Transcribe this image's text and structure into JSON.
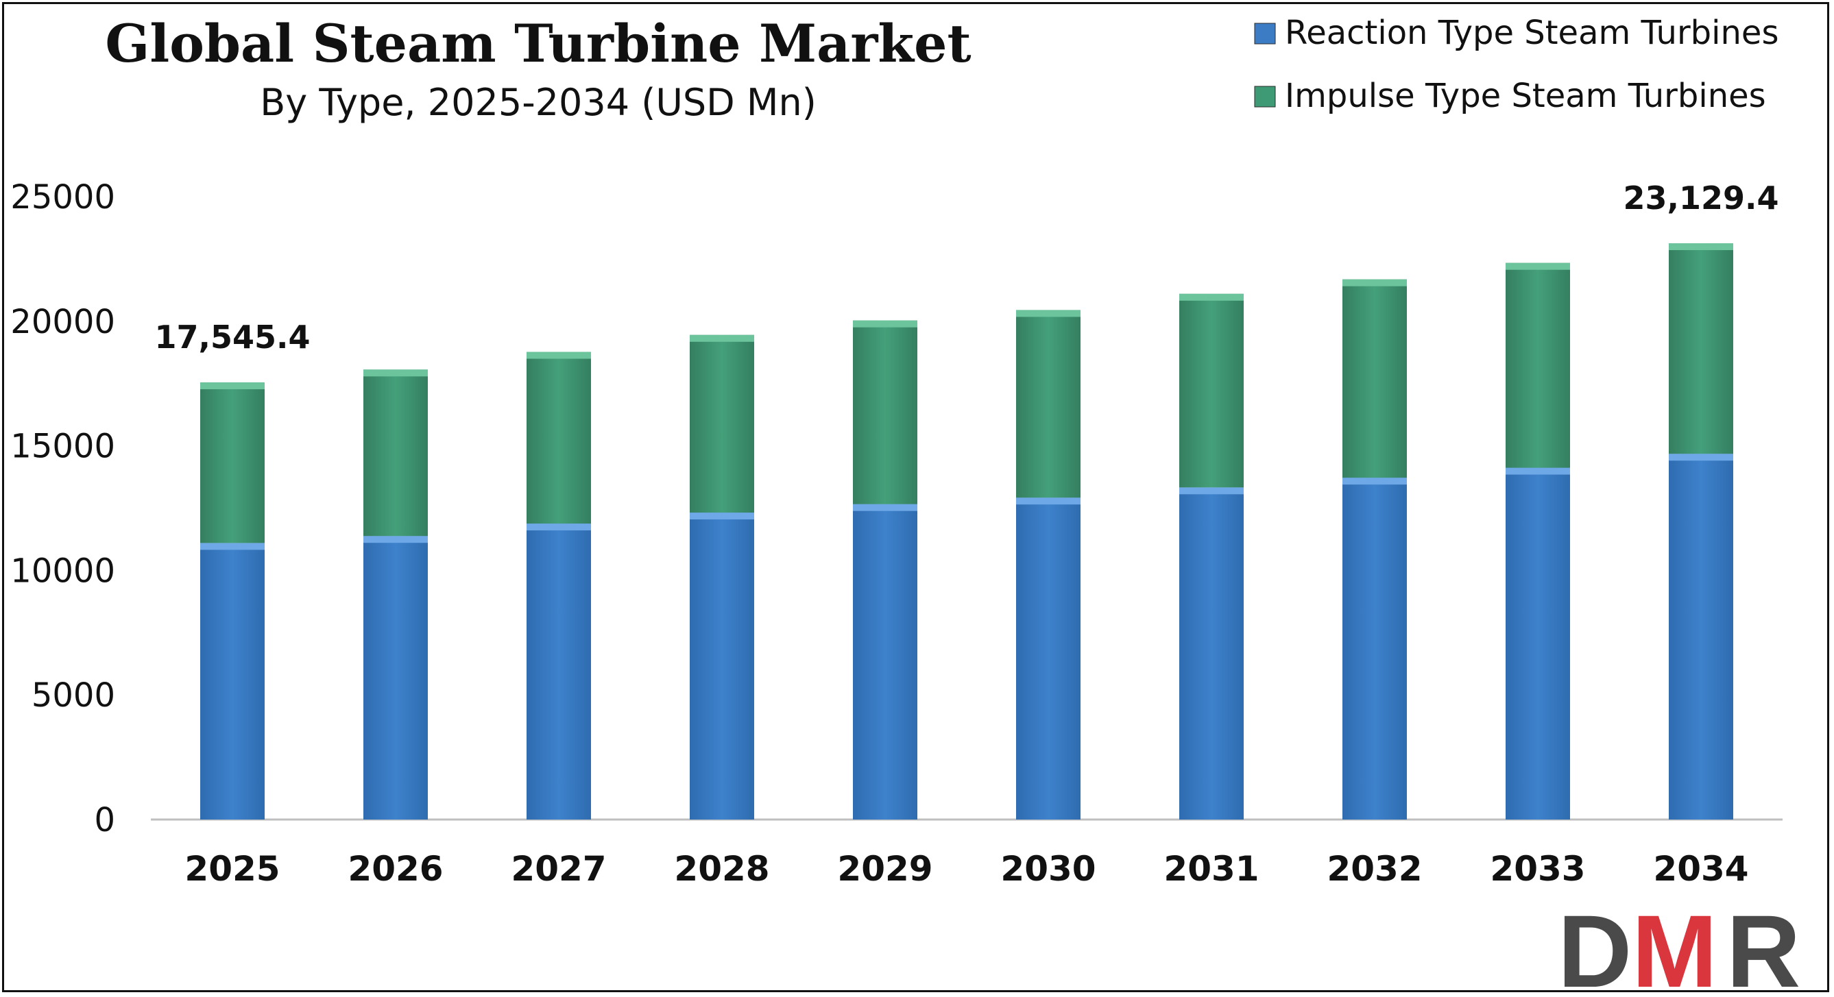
{
  "chart_data": {
    "type": "bar",
    "stacked": true,
    "title": "Global Steam Turbine Market",
    "subtitle": "By Type, 2025-2034 (USD Mn)",
    "categories": [
      "2025",
      "2026",
      "2027",
      "2028",
      "2029",
      "2030",
      "2031",
      "2032",
      "2033",
      "2034"
    ],
    "series": [
      {
        "name": "Reaction Type Steam Turbines",
        "color": "#3b7cc4",
        "values": [
          11100,
          11380,
          11880,
          12320,
          12660,
          12920,
          13330,
          13720,
          14120,
          14680
        ]
      },
      {
        "name": "Impulse Type Steam Turbines",
        "color": "#3e9a74",
        "values": [
          6445.4,
          6680,
          6890,
          7130,
          7370,
          7530,
          7770,
          7960,
          8220,
          8449.4
        ]
      }
    ],
    "ylim": [
      0,
      25000
    ],
    "yticks": [
      "0",
      "5000",
      "10000",
      "15000",
      "20000",
      "25000"
    ],
    "data_labels": [
      {
        "category": "2025",
        "text": "17,545.4"
      },
      {
        "category": "2034",
        "text": "23,129.4"
      }
    ],
    "legend_position": "top-right",
    "grid": false
  },
  "logo": {
    "text": "DMR",
    "colors": [
      "#4a4a4a",
      "#d9363e",
      "#4a4a4a"
    ]
  }
}
